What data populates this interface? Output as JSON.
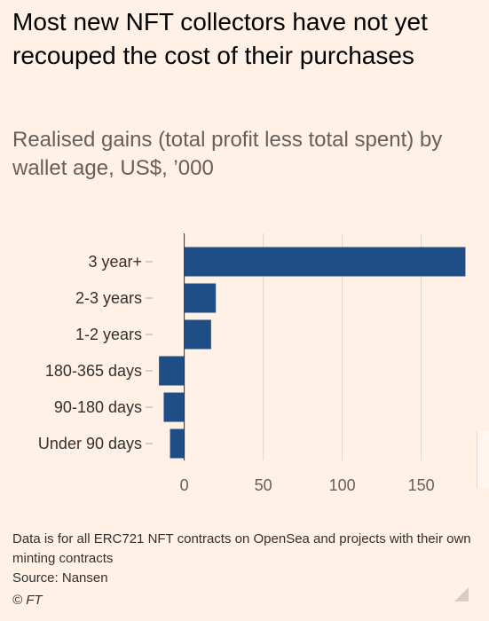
{
  "header": {
    "title": "Most new NFT collectors have not yet recouped the cost of their purchases",
    "subtitle": "Realised gains (total profit less total spent) by wallet age, US$, ’000"
  },
  "chart_data": {
    "type": "bar",
    "orientation": "horizontal",
    "title": "Most new NFT collectors have not yet recouped the cost of their purchases",
    "subtitle": "Realised gains (total profit less total spent) by wallet age, US$, ’000",
    "xlabel": "",
    "ylabel": "",
    "categories": [
      "3 year+",
      "2-3 years",
      "1-2 years",
      "180-365 days",
      "90-180 days",
      "Under 90 days"
    ],
    "values": [
      178,
      20,
      17,
      -16,
      -13,
      -9
    ],
    "xlim": [
      -20,
      180
    ],
    "xticks": [
      0,
      50,
      100,
      150
    ],
    "grid": true,
    "bar_color": "#1f4e87",
    "grid_color": "#e4d7cb"
  },
  "footer": {
    "note": "Data is for all ERC721 NFT contracts on OpenSea and projects with their own minting contracts",
    "source": "Source: Nansen",
    "copyright": "© FT"
  }
}
